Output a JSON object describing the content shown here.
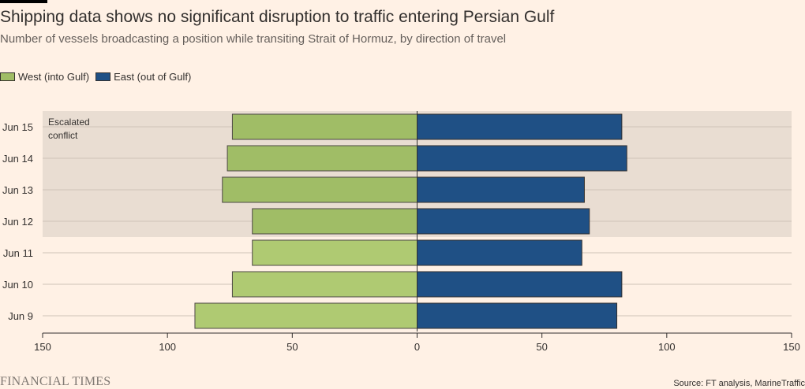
{
  "header": {
    "title": "Shipping data shows no significant disruption to traffic entering Persian Gulf",
    "subtitle": "Number of vessels broadcasting a position while transiting Strait of Hormuz, by direction of travel"
  },
  "legend": {
    "west_label": "West (into Gulf)",
    "east_label": "East (out of Gulf)"
  },
  "annotation": {
    "line1": "Escalated",
    "line2": "conflict"
  },
  "footer": {
    "brand": "FINANCIAL TIMES",
    "source": "Source: FT analysis, MarineTraffic"
  },
  "colors": {
    "background": "#fff1e5",
    "shade": "#e9ddd2",
    "west_normal": "#afca72",
    "west_escalated": "#a0bd66",
    "east": "#1f5085",
    "grid": "#cfc3b8"
  },
  "chart_data": {
    "type": "bar",
    "orientation": "horizontal-diverging",
    "title": "Shipping data shows no significant disruption to traffic entering Persian Gulf",
    "subtitle": "Number of vessels broadcasting a position while transiting Strait of Hormuz, by direction of travel",
    "categories": [
      "Jun 15",
      "Jun 14",
      "Jun 13",
      "Jun 12",
      "Jun 11",
      "Jun 10",
      "Jun 9"
    ],
    "series": [
      {
        "name": "West (into Gulf)",
        "direction": "left",
        "values": [
          74,
          76,
          78,
          66,
          66,
          74,
          89
        ]
      },
      {
        "name": "East (out of Gulf)",
        "direction": "right",
        "values": [
          82,
          84,
          67,
          69,
          66,
          82,
          80
        ]
      }
    ],
    "escalated_categories": [
      "Jun 15",
      "Jun 14",
      "Jun 13",
      "Jun 12"
    ],
    "xlim": [
      -150,
      150
    ],
    "xticks": [
      -150,
      -100,
      -50,
      0,
      50,
      100,
      150
    ],
    "xtick_labels": [
      "150",
      "100",
      "50",
      "0",
      "50",
      "100",
      "150"
    ],
    "xlabel": "",
    "ylabel": ""
  }
}
